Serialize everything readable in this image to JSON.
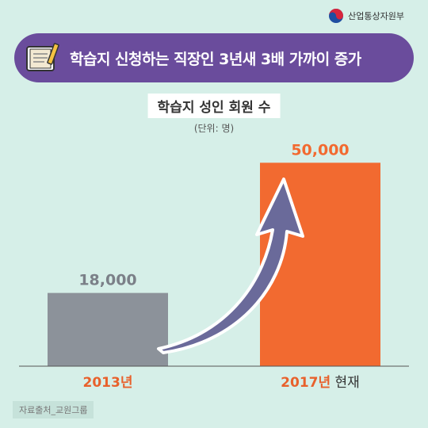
{
  "header": {
    "ministry": "산업통상자원부",
    "title": "학습지 신청하는 직장인 3년새 3배 가까이 증가"
  },
  "chart_data": {
    "type": "bar",
    "title": "학습지 성인 회원 수",
    "unit": "(단위: 명)",
    "categories": [
      "2013년",
      "2017년"
    ],
    "category_suffix": [
      "",
      "현재"
    ],
    "values": [
      18000,
      50000
    ],
    "value_labels": [
      "18,000",
      "50,000"
    ],
    "colors": [
      "#8c929a",
      "#f26a30"
    ],
    "label_colors": [
      "#7b8088",
      "#f26a30"
    ],
    "category_color": "#e8612c",
    "arrow_color": "#6a6a9a",
    "ylim": [
      0,
      60000
    ]
  },
  "footer": {
    "source": "자료출처_교원그룹"
  }
}
